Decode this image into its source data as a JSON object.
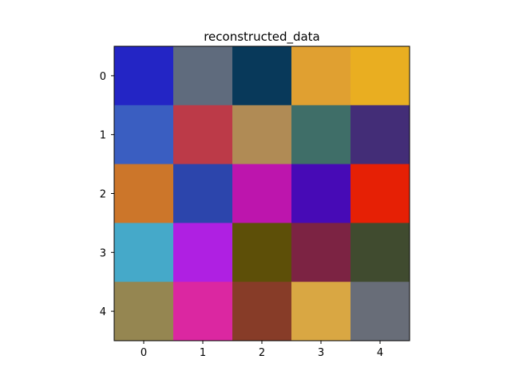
{
  "chart_data": {
    "type": "heatmap",
    "title": "reconstructed_data",
    "xlabel": "",
    "ylabel": "",
    "x_ticks": [
      "0",
      "1",
      "2",
      "3",
      "4"
    ],
    "y_ticks": [
      "0",
      "1",
      "2",
      "3",
      "4"
    ],
    "grid": false,
    "cells": [
      [
        "#2325C5",
        "#5F6B7D",
        "#08395A",
        "#E0A031",
        "#E9AE21"
      ],
      [
        "#3A5EC1",
        "#BC3A48",
        "#B08B55",
        "#3F6E68",
        "#432D77"
      ],
      [
        "#CC762A",
        "#2C45AC",
        "#BD15AD",
        "#470AB6",
        "#E62005"
      ],
      [
        "#45A9C9",
        "#AF20E2",
        "#5D4F08",
        "#7C2343",
        "#404B2F"
      ],
      [
        "#958651",
        "#DB27A1",
        "#873C28",
        "#D9A743",
        "#686D78"
      ]
    ]
  }
}
